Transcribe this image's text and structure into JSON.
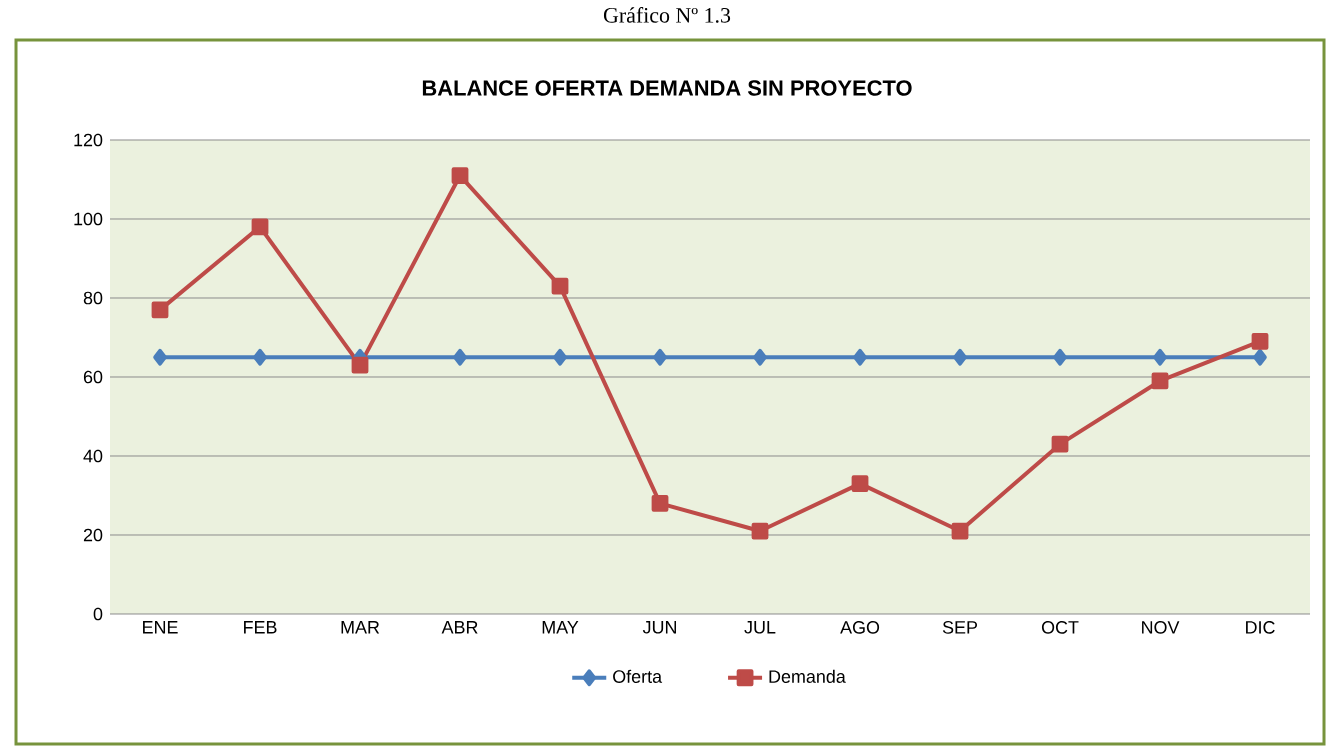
{
  "chart_data": {
    "type": "line",
    "title": "BALANCE OFERTA DEMANDA SIN PROYECTO",
    "annotations": [
      "Gráfico Nº 1.3"
    ],
    "categories": [
      "ENE",
      "FEB",
      "MAR",
      "ABR",
      "MAY",
      "JUN",
      "JUL",
      "AGO",
      "SEP",
      "OCT",
      "NOV",
      "DIC"
    ],
    "series": [
      {
        "name": "Oferta",
        "color": "#4a7ebb",
        "marker": "diamond",
        "values": [
          65,
          65,
          65,
          65,
          65,
          65,
          65,
          65,
          65,
          65,
          65,
          65
        ]
      },
      {
        "name": "Demanda",
        "color": "#be4b48",
        "marker": "square",
        "values": [
          77,
          98,
          63,
          111,
          83,
          28,
          21,
          33,
          21,
          43,
          59,
          69
        ]
      }
    ],
    "ylim": [
      0,
      120
    ],
    "yticks": [
      0,
      20,
      40,
      60,
      80,
      100,
      120
    ],
    "grid": "y",
    "legend": "bottom"
  }
}
